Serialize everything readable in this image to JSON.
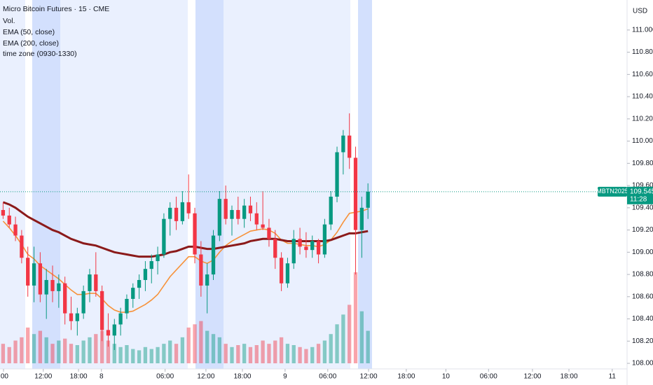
{
  "chart_data": {
    "type": "candlestick",
    "title": "Micro Bitcoin Futures · 15 · CME",
    "volume_label": "Vol.",
    "zone_label": "time zone (0930-1330)",
    "currency": "USD",
    "symbol_tag": "MBTN2025",
    "countdown": "11:28",
    "up_color": "#089981",
    "down_color": "#f23645",
    "ylim": [
      107.95,
      111.27
    ],
    "yticks": [
      {
        "value": 108.0,
        "label": "108.000"
      },
      {
        "value": 108.2,
        "label": "108.200"
      },
      {
        "value": 108.4,
        "label": "108.400"
      },
      {
        "value": 108.6,
        "label": "108.600"
      },
      {
        "value": 108.8,
        "label": "108.800"
      },
      {
        "value": 109.0,
        "label": "109.000"
      },
      {
        "value": 109.2,
        "label": "109.200"
      },
      {
        "value": 109.4,
        "label": "109.400"
      },
      {
        "value": 109.6,
        "label": "109.600"
      },
      {
        "value": 109.8,
        "label": "109.800"
      },
      {
        "value": 110.0,
        "label": "110.000"
      },
      {
        "value": 110.2,
        "label": "110.200"
      },
      {
        "value": 110.4,
        "label": "110.400"
      },
      {
        "value": 110.6,
        "label": "110.600"
      },
      {
        "value": 110.8,
        "label": "110.800"
      },
      {
        "value": 111.0,
        "label": "111.000"
      }
    ],
    "xlim": [
      -0.5,
      100.9
    ],
    "xticks": [
      {
        "value": 0.07,
        "label": ":00"
      },
      {
        "value": 6.5,
        "label": "12:00"
      },
      {
        "value": 12.2,
        "label": "18:00"
      },
      {
        "value": 15.9,
        "label": "8"
      },
      {
        "value": 26.2,
        "label": "06:00"
      },
      {
        "value": 32.8,
        "label": "12:00"
      },
      {
        "value": 38.7,
        "label": "18:00"
      },
      {
        "value": 45.6,
        "label": "9"
      },
      {
        "value": 52.5,
        "label": "06:00"
      },
      {
        "value": 59.1,
        "label": "12:00"
      },
      {
        "value": 65.2,
        "label": "18:00"
      },
      {
        "value": 71.6,
        "label": "10"
      },
      {
        "value": 78.5,
        "label": "06:00"
      },
      {
        "value": 85.6,
        "label": "12:00"
      },
      {
        "value": 91.5,
        "label": "18:00"
      },
      {
        "value": 98.5,
        "label": "11"
      }
    ],
    "open": [
      109.38,
      109.33,
      109.25,
      109.15,
      108.95,
      108.7,
      108.9,
      108.62,
      108.75,
      108.65,
      108.72,
      108.45,
      108.38,
      108.45,
      108.65,
      108.8,
      108.65,
      108.3,
      108.25,
      108.35,
      108.45,
      108.58,
      108.68,
      108.75,
      108.85,
      108.92,
      108.98,
      109.3,
      109.4,
      109.28,
      109.45,
      109.35,
      108.98,
      108.7,
      108.8,
      109.15,
      109.48,
      109.3,
      109.38,
      109.3,
      109.42,
      109.35,
      109.25,
      109.22,
      109.12,
      108.95,
      108.72,
      108.9,
      109.12,
      109.05,
      109.02,
      109.1,
      108.98,
      109.25,
      109.5,
      109.9,
      110.05,
      109.85,
      109.2,
      109.4
    ],
    "high": [
      109.45,
      109.4,
      109.32,
      109.2,
      109.05,
      109.05,
      109.0,
      108.85,
      108.88,
      108.8,
      108.78,
      108.6,
      108.5,
      108.7,
      108.85,
      109.0,
      108.7,
      108.45,
      108.4,
      108.5,
      108.62,
      108.72,
      108.8,
      108.92,
      108.98,
      109.05,
      109.35,
      109.45,
      109.5,
      109.55,
      109.7,
      109.4,
      109.1,
      108.9,
      109.2,
      109.55,
      109.6,
      109.42,
      109.5,
      109.48,
      109.5,
      109.45,
      109.55,
      109.3,
      109.2,
      109.0,
      108.95,
      109.2,
      109.22,
      109.18,
      109.15,
      109.12,
      109.3,
      109.55,
      109.95,
      110.1,
      110.25,
      109.95,
      109.5,
      109.62
    ],
    "low": [
      109.3,
      109.22,
      109.1,
      108.9,
      108.6,
      108.55,
      108.55,
      108.4,
      108.55,
      108.5,
      108.35,
      108.3,
      108.25,
      108.4,
      108.55,
      108.6,
      108.2,
      108.15,
      108.12,
      108.25,
      108.4,
      108.5,
      108.58,
      108.65,
      108.72,
      108.8,
      108.95,
      109.15,
      109.2,
      109.25,
      109.3,
      108.9,
      108.6,
      108.45,
      108.75,
      109.1,
      109.25,
      109.15,
      109.25,
      109.22,
      109.28,
      109.2,
      109.2,
      109.05,
      108.85,
      108.65,
      108.68,
      108.85,
      108.98,
      108.95,
      108.95,
      108.9,
      108.95,
      109.2,
      109.45,
      109.7,
      109.75,
      108.8,
      108.95,
      109.3
    ],
    "close": [
      109.33,
      109.25,
      109.15,
      108.95,
      108.7,
      108.9,
      108.62,
      108.75,
      108.65,
      108.72,
      108.45,
      108.38,
      108.45,
      108.65,
      108.8,
      108.65,
      108.3,
      108.25,
      108.35,
      108.45,
      108.58,
      108.68,
      108.75,
      108.85,
      108.92,
      108.98,
      109.3,
      109.4,
      109.28,
      109.45,
      109.35,
      108.98,
      108.7,
      108.8,
      109.15,
      109.48,
      109.3,
      109.38,
      109.3,
      109.42,
      109.35,
      109.25,
      109.22,
      109.12,
      108.95,
      108.72,
      108.9,
      109.12,
      109.05,
      109.02,
      109.1,
      108.98,
      109.25,
      109.5,
      109.9,
      110.05,
      109.85,
      109.2,
      109.4,
      109.545
    ],
    "volume": [
      30,
      25,
      35,
      40,
      55,
      45,
      50,
      40,
      30,
      35,
      38,
      30,
      28,
      35,
      40,
      45,
      50,
      35,
      30,
      25,
      28,
      22,
      20,
      25,
      22,
      25,
      30,
      35,
      30,
      40,
      55,
      60,
      65,
      50,
      45,
      40,
      30,
      25,
      28,
      30,
      25,
      28,
      35,
      30,
      35,
      40,
      30,
      28,
      25,
      22,
      25,
      30,
      35,
      45,
      60,
      75,
      90,
      140,
      80,
      50
    ],
    "series": [
      {
        "name": "EMA (50, close)",
        "color": "#f7923a",
        "values": [
          109.28,
          109.22,
          109.15,
          109.07,
          108.98,
          108.94,
          108.88,
          108.84,
          108.8,
          108.76,
          108.71,
          108.66,
          108.62,
          108.62,
          108.63,
          108.63,
          108.58,
          108.52,
          108.48,
          108.46,
          108.46,
          108.47,
          108.5,
          108.53,
          108.57,
          108.62,
          108.7,
          108.78,
          108.84,
          108.9,
          108.96,
          108.96,
          108.92,
          108.9,
          108.93,
          109.0,
          109.06,
          109.1,
          109.13,
          109.16,
          109.19,
          109.2,
          109.21,
          109.2,
          109.17,
          109.11,
          109.08,
          109.08,
          109.07,
          109.06,
          109.06,
          109.05,
          109.07,
          109.11,
          109.18,
          109.27,
          109.35,
          109.36,
          109.37,
          109.39
        ]
      },
      {
        "name": "EMA (200, close)",
        "color": "#8b1a1a",
        "values": [
          109.45,
          109.43,
          109.4,
          109.36,
          109.32,
          109.29,
          109.26,
          109.23,
          109.2,
          109.18,
          109.15,
          109.12,
          109.1,
          109.08,
          109.07,
          109.06,
          109.04,
          109.02,
          109.0,
          108.99,
          108.98,
          108.97,
          108.96,
          108.96,
          108.96,
          108.97,
          108.98,
          109.0,
          109.01,
          109.03,
          109.05,
          109.05,
          109.04,
          109.03,
          109.03,
          109.04,
          109.05,
          109.06,
          109.07,
          109.08,
          109.1,
          109.11,
          109.12,
          109.12,
          109.12,
          109.11,
          109.1,
          109.1,
          109.1,
          109.1,
          109.1,
          109.1,
          109.1,
          109.11,
          109.13,
          109.15,
          109.17,
          109.17,
          109.18,
          109.19
        ]
      }
    ]
  }
}
